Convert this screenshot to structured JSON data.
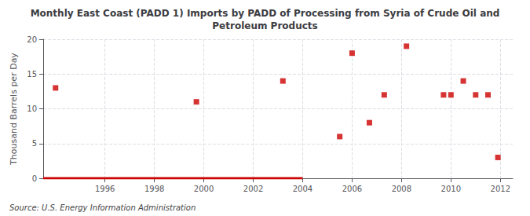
{
  "chart_data": {
    "type": "scatter",
    "title": "Monthly East Coast (PADD 1) Imports by PADD of Processing from Syria of Crude Oil and\nPetroleum Products",
    "ylabel": "Thousand Barrels per Day",
    "source": "Source: U.S. Energy Information Administration",
    "xlim": [
      1993.5,
      2012.5
    ],
    "ylim": [
      0,
      20
    ],
    "xticks": [
      1996,
      1998,
      2000,
      2002,
      2004,
      2006,
      2008,
      2010,
      2012
    ],
    "yticks": [
      0,
      5,
      10,
      15,
      20
    ],
    "grid": true,
    "series": [
      {
        "type": "scatter",
        "color": "#cc0000",
        "marker": "square",
        "x": [
          1994.0,
          1999.7,
          2003.2,
          2005.5,
          2006.0,
          2006.7,
          2007.3,
          2008.2,
          2009.7,
          2010.0,
          2010.5,
          2011.0,
          2011.5,
          2011.9
        ],
        "values": [
          13,
          11,
          14,
          6,
          18,
          8,
          12,
          19,
          12,
          12,
          14,
          12,
          12,
          3
        ]
      },
      {
        "type": "line",
        "color": "#cc0000",
        "line_style": "solid",
        "x": [
          1993.5,
          2004.0
        ],
        "values": [
          0,
          0
        ]
      }
    ]
  }
}
